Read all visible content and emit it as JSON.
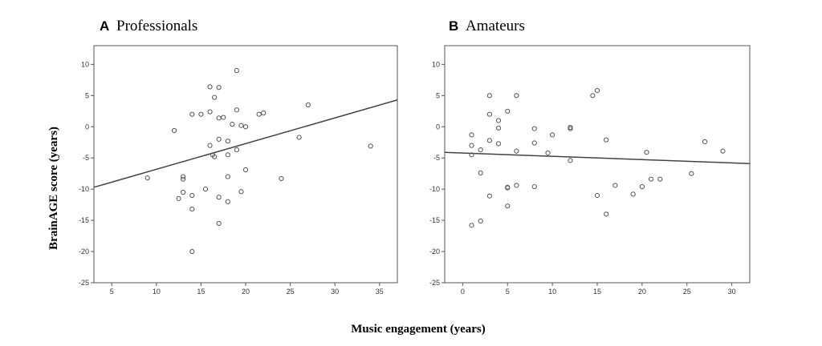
{
  "ylabel": "BrainAGE  score (years)",
  "xlabel": "Music engagement (years)",
  "chart_data": [
    {
      "type": "scatter",
      "letter": "A",
      "title": "Professionals",
      "xlim": [
        3,
        37
      ],
      "ylim": [
        -25,
        13
      ],
      "xticks": [
        5,
        10,
        15,
        20,
        25,
        30,
        35
      ],
      "yticks": [
        10,
        5,
        0,
        -5,
        -10,
        -15,
        -20,
        -25
      ],
      "fit": {
        "x": [
          3,
          37
        ],
        "y": [
          -9.7,
          4.3
        ]
      },
      "points": [
        [
          9,
          -8.2
        ],
        [
          12,
          -0.6
        ],
        [
          12.5,
          -11.5
        ],
        [
          13,
          -8
        ],
        [
          13,
          -8.4
        ],
        [
          13,
          -10.5
        ],
        [
          14,
          2
        ],
        [
          14,
          -11
        ],
        [
          14,
          -13.2
        ],
        [
          14,
          -20
        ],
        [
          15,
          2
        ],
        [
          15.5,
          -10
        ],
        [
          16,
          6.4
        ],
        [
          16,
          2.4
        ],
        [
          16,
          -3
        ],
        [
          16.3,
          -4.5
        ],
        [
          16.5,
          -4.8
        ],
        [
          16.5,
          4.7
        ],
        [
          17,
          6.3
        ],
        [
          17,
          1.4
        ],
        [
          17,
          -2
        ],
        [
          17,
          -11.3
        ],
        [
          17,
          -15.5
        ],
        [
          17.5,
          1.5
        ],
        [
          18,
          -2.3
        ],
        [
          18,
          -4.5
        ],
        [
          18,
          -8
        ],
        [
          18,
          -12
        ],
        [
          18.5,
          0.4
        ],
        [
          19,
          9
        ],
        [
          19,
          2.7
        ],
        [
          19,
          -3.7
        ],
        [
          19.5,
          0.2
        ],
        [
          19.5,
          -10.4
        ],
        [
          20,
          0
        ],
        [
          20,
          -6.9
        ],
        [
          21.5,
          2
        ],
        [
          22,
          2.2
        ],
        [
          24,
          -8.3
        ],
        [
          26,
          -1.7
        ],
        [
          27,
          3.5
        ],
        [
          34,
          -3.1
        ]
      ]
    },
    {
      "type": "scatter",
      "letter": "B",
      "title": "Amateurs",
      "xlim": [
        -2,
        32
      ],
      "ylim": [
        -25,
        13
      ],
      "xticks": [
        0,
        5,
        10,
        15,
        20,
        25,
        30
      ],
      "yticks": [
        10,
        5,
        0,
        -5,
        -10,
        -15,
        -20,
        -25
      ],
      "fit": {
        "x": [
          -2,
          32
        ],
        "y": [
          -4.1,
          -5.9
        ]
      },
      "points": [
        [
          1,
          -1.3
        ],
        [
          1,
          -3
        ],
        [
          1,
          -4.5
        ],
        [
          1,
          -15.8
        ],
        [
          2,
          -3.7
        ],
        [
          2,
          -7.4
        ],
        [
          2,
          -15.1
        ],
        [
          3,
          5
        ],
        [
          3,
          2
        ],
        [
          3,
          -2.2
        ],
        [
          3,
          -11.1
        ],
        [
          4,
          1
        ],
        [
          4,
          -0.2
        ],
        [
          4,
          -2.7
        ],
        [
          5,
          2.5
        ],
        [
          5,
          -9.7
        ],
        [
          5,
          -9.8
        ],
        [
          5,
          -12.7
        ],
        [
          6,
          5
        ],
        [
          6,
          -3.9
        ],
        [
          6,
          -9.4
        ],
        [
          8,
          -0.3
        ],
        [
          8,
          -2.6
        ],
        [
          8,
          -9.6
        ],
        [
          9.5,
          -4.2
        ],
        [
          10,
          -1.3
        ],
        [
          12,
          -0.1
        ],
        [
          12,
          -0.3
        ],
        [
          12,
          -5.4
        ],
        [
          14.5,
          5
        ],
        [
          15,
          5.8
        ],
        [
          15,
          -11
        ],
        [
          16,
          -2.1
        ],
        [
          16,
          -14
        ],
        [
          17,
          -9.4
        ],
        [
          19,
          -10.8
        ],
        [
          20,
          -9.6
        ],
        [
          20.5,
          -4.1
        ],
        [
          21,
          -8.4
        ],
        [
          22,
          -8.4
        ],
        [
          25.5,
          -7.5
        ],
        [
          27,
          -2.4
        ],
        [
          29,
          -3.9
        ]
      ]
    }
  ]
}
